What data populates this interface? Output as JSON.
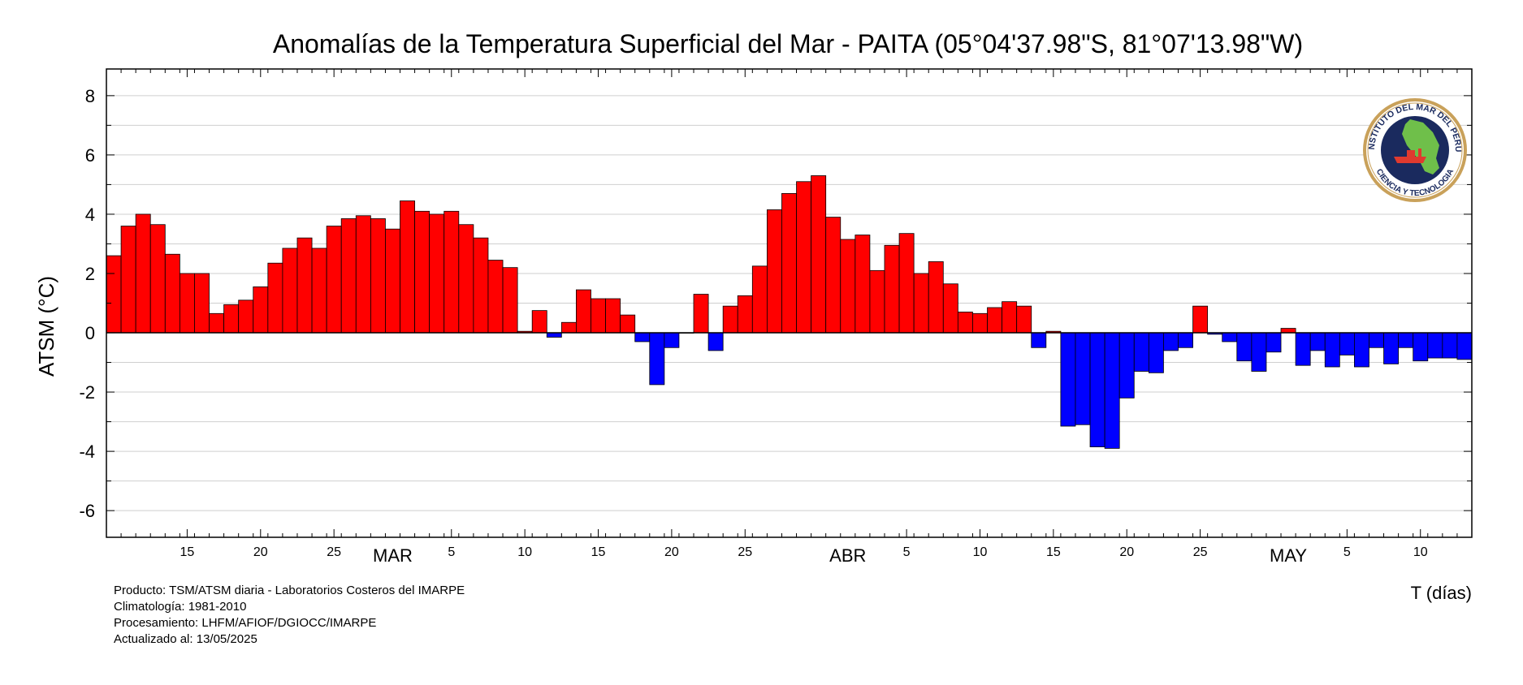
{
  "chart_data": {
    "type": "bar",
    "title": "Anomalías de la Temperatura Superficial del Mar - PAITA (05°04'37.98\"S, 81°07'13.98\"W)",
    "ylabel": "ATSM (°C)",
    "xlabel": "T (días)",
    "ylim": [
      -6.9,
      8.9
    ],
    "yticks": [
      -6,
      -4,
      -2,
      0,
      2,
      4,
      6,
      8
    ],
    "grid": true,
    "colors": {
      "positive": "#ff0000",
      "negative": "#0000ff",
      "grid": "#cfcfcf",
      "axis": "#000000"
    },
    "x_start": "2025-02-10",
    "x_end": "2025-05-13",
    "x": [
      "2025-02-10",
      "2025-02-11",
      "2025-02-12",
      "2025-02-13",
      "2025-02-14",
      "2025-02-15",
      "2025-02-16",
      "2025-02-17",
      "2025-02-18",
      "2025-02-19",
      "2025-02-20",
      "2025-02-21",
      "2025-02-22",
      "2025-02-23",
      "2025-02-24",
      "2025-02-25",
      "2025-02-26",
      "2025-02-27",
      "2025-02-28",
      "2025-03-01",
      "2025-03-02",
      "2025-03-03",
      "2025-03-04",
      "2025-03-05",
      "2025-03-06",
      "2025-03-07",
      "2025-03-08",
      "2025-03-09",
      "2025-03-10",
      "2025-03-11",
      "2025-03-12",
      "2025-03-13",
      "2025-03-14",
      "2025-03-15",
      "2025-03-16",
      "2025-03-17",
      "2025-03-18",
      "2025-03-19",
      "2025-03-20",
      "2025-03-21",
      "2025-03-22",
      "2025-03-23",
      "2025-03-24",
      "2025-03-25",
      "2025-03-26",
      "2025-03-27",
      "2025-03-28",
      "2025-03-29",
      "2025-03-30",
      "2025-03-31",
      "2025-04-01",
      "2025-04-02",
      "2025-04-03",
      "2025-04-04",
      "2025-04-05",
      "2025-04-06",
      "2025-04-07",
      "2025-04-08",
      "2025-04-09",
      "2025-04-10",
      "2025-04-11",
      "2025-04-12",
      "2025-04-13",
      "2025-04-14",
      "2025-04-15",
      "2025-04-16",
      "2025-04-17",
      "2025-04-18",
      "2025-04-19",
      "2025-04-20",
      "2025-04-21",
      "2025-04-22",
      "2025-04-23",
      "2025-04-24",
      "2025-04-25",
      "2025-04-26",
      "2025-04-27",
      "2025-04-28",
      "2025-04-29",
      "2025-04-30",
      "2025-05-01",
      "2025-05-02",
      "2025-05-03",
      "2025-05-04",
      "2025-05-05",
      "2025-05-06",
      "2025-05-07",
      "2025-05-08",
      "2025-05-09",
      "2025-05-10",
      "2025-05-11",
      "2025-05-12",
      "2025-05-13"
    ],
    "values": [
      2.6,
      3.6,
      4.0,
      3.65,
      2.65,
      2.0,
      2.0,
      0.65,
      0.95,
      1.1,
      1.55,
      2.35,
      2.85,
      3.2,
      2.85,
      3.6,
      3.85,
      3.95,
      3.85,
      3.5,
      4.45,
      4.1,
      4.0,
      4.1,
      3.65,
      3.2,
      2.45,
      2.2,
      0.05,
      0.75,
      -0.15,
      0.35,
      1.45,
      1.15,
      1.15,
      0.6,
      -0.3,
      -1.75,
      -0.5,
      0.0,
      1.3,
      -0.6,
      0.9,
      1.25,
      2.25,
      4.15,
      4.7,
      5.1,
      5.3,
      3.9,
      3.15,
      3.3,
      2.1,
      2.95,
      3.35,
      2.0,
      2.4,
      1.65,
      0.7,
      0.65,
      0.85,
      1.05,
      0.9,
      -0.5,
      0.05,
      -3.15,
      -3.1,
      -3.85,
      -3.9,
      -2.2,
      -1.3,
      -1.35,
      -0.6,
      -0.5,
      0.9,
      -0.05,
      -0.3,
      -0.95,
      -1.3,
      -0.65,
      0.15,
      -1.1,
      -0.6,
      -1.15,
      -0.75,
      -1.15,
      -0.5,
      -1.05,
      -0.5,
      -0.95,
      -0.85,
      -0.85,
      -0.9
    ],
    "x_tick_labels": [
      {
        "date": "2025-02-15",
        "label": "15"
      },
      {
        "date": "2025-02-20",
        "label": "20"
      },
      {
        "date": "2025-02-25",
        "label": "25"
      },
      {
        "date": "2025-03-05",
        "label": "5"
      },
      {
        "date": "2025-03-10",
        "label": "10"
      },
      {
        "date": "2025-03-15",
        "label": "15"
      },
      {
        "date": "2025-03-20",
        "label": "20"
      },
      {
        "date": "2025-03-25",
        "label": "25"
      },
      {
        "date": "2025-04-05",
        "label": "5"
      },
      {
        "date": "2025-04-10",
        "label": "10"
      },
      {
        "date": "2025-04-15",
        "label": "15"
      },
      {
        "date": "2025-04-20",
        "label": "20"
      },
      {
        "date": "2025-04-25",
        "label": "25"
      },
      {
        "date": "2025-05-05",
        "label": "5"
      },
      {
        "date": "2025-05-10",
        "label": "10"
      }
    ],
    "month_labels": [
      {
        "date": "2025-03-01",
        "label": "MAR"
      },
      {
        "date": "2025-04-01",
        "label": "ABR"
      },
      {
        "date": "2025-05-01",
        "label": "MAY"
      }
    ]
  },
  "logo": {
    "ring_text_top": "INSTITUTO DEL MAR DEL PERU",
    "ring_text_bottom": "CIENCIA Y TECNOLOGIA",
    "colors": {
      "ring": "#c9a15a",
      "inner": "#1a2a5e",
      "land": "#6fbf4a",
      "ship": "#e03a2f"
    }
  },
  "footer": {
    "line1": "Producto: TSM/ATSM diaria - Laboratorios Costeros del IMARPE",
    "line2": "Climatología: 1981-2010",
    "line3": "Procesamiento: LHFM/AFIOF/DGIOCC/IMARPE",
    "line4": "Actualizado al: 13/05/2025"
  }
}
